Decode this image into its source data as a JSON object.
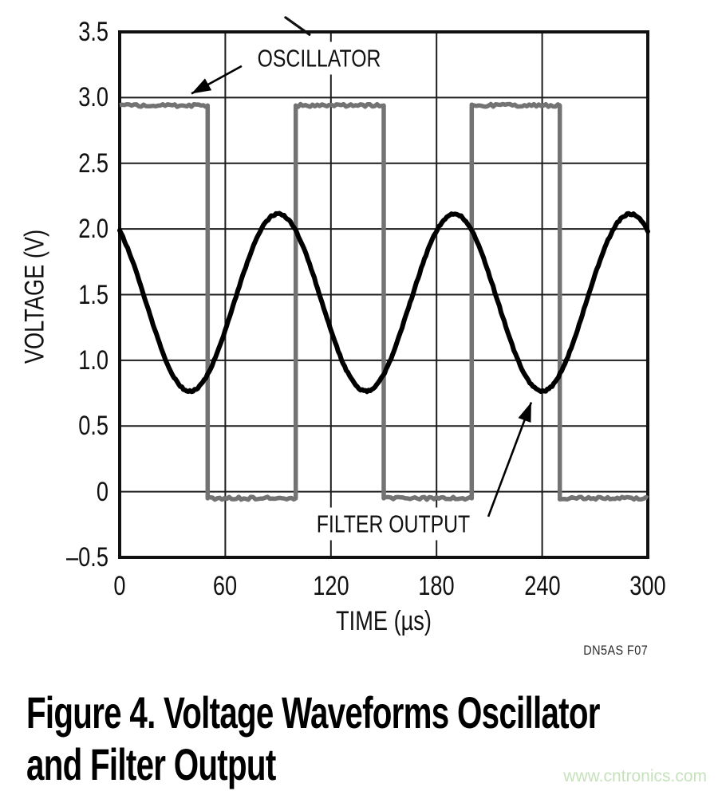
{
  "chart_data": {
    "type": "line",
    "title": "",
    "xlabel": "TIME (µs)",
    "ylabel": "VOLTAGE (V)",
    "xlim": [
      0,
      300
    ],
    "ylim": [
      -0.5,
      3.5
    ],
    "grid": true,
    "x_ticks": [
      0,
      60,
      120,
      180,
      240,
      300
    ],
    "x_tick_labels": [
      "0",
      "60",
      "120",
      "180",
      "240",
      "300"
    ],
    "y_ticks": [
      3.5,
      3.0,
      2.5,
      2.0,
      1.5,
      1.0,
      0.5,
      0,
      -0.5
    ],
    "y_tick_labels": [
      "3.5",
      "3.0",
      "2.5",
      "2.0",
      "1.5",
      "1.0",
      "0.5",
      "0",
      "–0.5"
    ],
    "series": [
      {
        "name": "OSCILLATOR",
        "waveform": "square",
        "color": "#737373",
        "high_v": 2.94,
        "low_v": -0.05,
        "period_us": 100,
        "duty_cycle": 0.5,
        "starts": "high",
        "edges_us": [
          50,
          100,
          150,
          200,
          250
        ],
        "high_intervals_us": [
          [
            0,
            50
          ],
          [
            100,
            150
          ],
          [
            200,
            250
          ]
        ]
      },
      {
        "name": "FILTER OUTPUT",
        "waveform": "sine",
        "color": "#000000",
        "mean_v": 1.44,
        "amplitude_v": 0.675,
        "period_us": 100,
        "min_at_us": 40,
        "max_v": 2.12,
        "min_v": 0.77,
        "sample_x_us": [
          0,
          10,
          20,
          30,
          40,
          50,
          60,
          70,
          80,
          90,
          100,
          110,
          120,
          130,
          140,
          150,
          160,
          170,
          180,
          190,
          200,
          210,
          220,
          230,
          240,
          250,
          260,
          270,
          280,
          290,
          300
        ],
        "sample_v": [
          1.99,
          1.65,
          1.23,
          0.89,
          0.77,
          0.89,
          1.23,
          1.65,
          1.99,
          2.12,
          1.99,
          1.65,
          1.23,
          0.89,
          0.77,
          0.89,
          1.23,
          1.65,
          1.99,
          2.12,
          1.99,
          1.65,
          1.23,
          0.89,
          0.77,
          0.89,
          1.23,
          1.65,
          1.99,
          2.12,
          1.99
        ]
      }
    ],
    "annotations": [
      {
        "label": "OSCILLATOR",
        "label_center": [
          113.3,
          3.3
        ],
        "arrow_from": [
          69.3,
          3.24
        ],
        "arrow_to": [
          40.8,
          3.03
        ]
      },
      {
        "label": "FILTER OUTPUT",
        "label_center": [
          155.4,
          -0.245
        ],
        "arrow_from": [
          209.4,
          -0.19
        ],
        "arrow_to": [
          233.8,
          0.68
        ]
      }
    ],
    "stray_mark": {
      "from": [
        94.2,
        3.61
      ],
      "to": [
        107.8,
        3.48
      ]
    }
  },
  "footer": {
    "source_code": "DN5AS F07"
  },
  "caption": {
    "lines": [
      "Figure 4. Voltage Waveforms Oscillator",
      "and Filter Output"
    ]
  },
  "watermark": {
    "text": "www.cntronics.com",
    "color": "#c5e2bc"
  },
  "colors": {
    "grid": "#1c1c1c",
    "frame": "#111111",
    "text": "#111111",
    "oscillator_trace": "#737373",
    "filter_trace": "#000000",
    "annotation_arrow": "#000000"
  }
}
